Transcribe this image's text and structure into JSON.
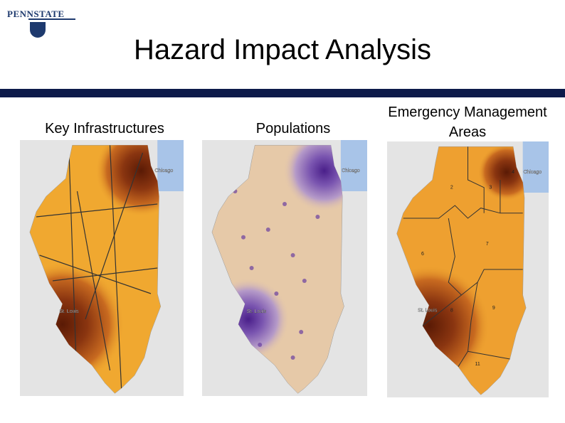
{
  "header": {
    "logo": "PENNSTATE",
    "title": "Hazard Impact Analysis"
  },
  "panels": [
    {
      "title": "Key Infrastructures",
      "labels": [
        "Chicago",
        "St. Louis"
      ]
    },
    {
      "title": "Populations",
      "labels": [
        "Chicago",
        "St. Louis"
      ]
    },
    {
      "title": "Emergency Management Areas",
      "labels": [
        "Chicago",
        "St. Louis",
        "2",
        "3",
        "4",
        "6",
        "7",
        "8",
        "9",
        "11"
      ]
    }
  ]
}
